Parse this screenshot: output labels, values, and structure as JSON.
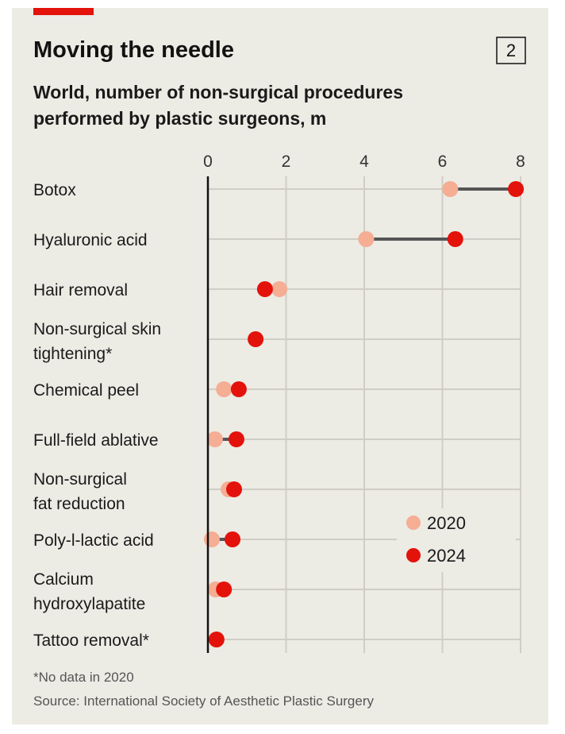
{
  "badge": "2",
  "colors": {
    "c2020": "#f5ad94",
    "c2024": "#e3120b",
    "background": "#ecebe4",
    "accent": "#e3120b"
  },
  "chart_data": {
    "type": "dumbbell",
    "title": "Moving the needle",
    "subtitle": [
      "World, number of non-surgical procedures",
      "performed by plastic surgeons, m"
    ],
    "xlim": [
      0,
      8
    ],
    "xticks": [
      "0",
      "2",
      "4",
      "6",
      "8"
    ],
    "grid": true,
    "legend": {
      "placement": "bottom-right",
      "entries": [
        "2020",
        "2024"
      ]
    },
    "categories": [
      [
        "Botox"
      ],
      [
        "Hyaluronic acid"
      ],
      [
        "Hair removal"
      ],
      [
        "Non-surgical skin",
        "tightening*"
      ],
      [
        "Chemical peel"
      ],
      [
        "Full-field ablative"
      ],
      [
        "Non-surgical",
        "fat reduction"
      ],
      [
        "Poly-l-lactic acid"
      ],
      [
        "Calcium",
        "hydroxylapatite"
      ],
      [
        "Tattoo removal*"
      ]
    ],
    "series": [
      {
        "name": "2020",
        "values": [
          6.2,
          4.05,
          1.83,
          null,
          0.41,
          0.18,
          0.53,
          0.1,
          0.2,
          null
        ]
      },
      {
        "name": "2024",
        "values": [
          7.88,
          6.33,
          1.46,
          1.22,
          0.79,
          0.73,
          0.67,
          0.63,
          0.41,
          0.22
        ]
      }
    ],
    "footnote": "*No data in 2020",
    "source": "Source: International Society of Aesthetic Plastic Surgery"
  }
}
